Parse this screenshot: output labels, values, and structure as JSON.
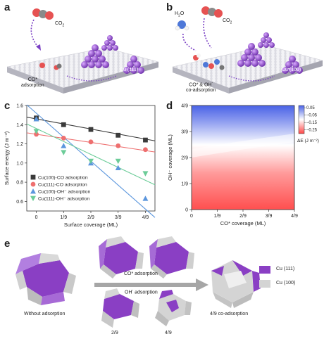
{
  "panels": {
    "a": {
      "letter": "a",
      "molecule_label": "CO",
      "molecule_sub": "2",
      "site_label": "CO*",
      "site_label2": "adsorption",
      "facet_label": "Cu (111)"
    },
    "b": {
      "letter": "b",
      "water_label": "H",
      "water_sub": "2",
      "water_tail": "O",
      "molecule_label": "CO",
      "molecule_sub": "2",
      "site_label": "CO* & OH",
      "site_label_sup": "-",
      "site_label2": "co-adsorption",
      "facet_label": "Cu (100)"
    },
    "c": {
      "letter": "c"
    },
    "d": {
      "letter": "d"
    },
    "e": {
      "letter": "e",
      "left_caption": "Without adsorption",
      "arrow_top": "CO* adsorption",
      "arrow_bottom": "OH",
      "arrow_bottom_sup": "-",
      "arrow_bottom_tail": " adsorption",
      "bottom_left_caption": "2/9",
      "bottom_right_caption": "4/9",
      "right_caption": "4/9 co-adsorption",
      "legend": [
        {
          "label": "Cu (111)",
          "color": "#8a3fc4"
        },
        {
          "label": "Cu (100)",
          "color": "#d4d4d4"
        }
      ]
    }
  },
  "chart_data": [
    {
      "type": "scatter",
      "panel": "c",
      "xlabel": "Surface coverage (ML)",
      "ylabel": "Surface energy (J m⁻²)",
      "x": [
        0,
        1,
        2,
        3,
        4
      ],
      "xticklabels": [
        "0",
        "1/9",
        "2/9",
        "3/9",
        "4/9"
      ],
      "xlim": [
        -0.35,
        4.35
      ],
      "ylim": [
        0.5,
        1.6
      ],
      "yticks": [
        0.6,
        0.8,
        1.0,
        1.2,
        1.4,
        1.6
      ],
      "yticklabels": [
        "0.6",
        "0.8",
        "1.0",
        "1.2",
        "1.4",
        "1.6"
      ],
      "legend_position": "bottom-left",
      "series": [
        {
          "name": "Cu(100)-CO adsorption",
          "marker": "square",
          "color": "#3b3b3b",
          "values": [
            1.47,
            1.4,
            1.35,
            1.29,
            1.24
          ],
          "fit": [
            1.46,
            1.25
          ]
        },
        {
          "name": "Cu(111)-CO adsorption",
          "marker": "circle",
          "color": "#ee6f6f",
          "values": [
            1.3,
            1.26,
            1.22,
            1.18,
            1.14
          ],
          "fit": [
            1.3,
            1.13
          ]
        },
        {
          "name": "Cu(100)-OH⁻ adsorption",
          "marker": "triangle-up",
          "color": "#5b96dd",
          "values": [
            1.46,
            1.18,
            1.0,
            0.95,
            0.63
          ],
          "fit": [
            1.52,
            0.52
          ]
        },
        {
          "name": "Cu(111)-OH⁻ adsorption",
          "marker": "triangle-down",
          "color": "#6ccc98",
          "values": [
            1.33,
            1.11,
            1.02,
            1.02,
            0.89
          ],
          "fit": [
            1.36,
            0.82
          ]
        }
      ]
    },
    {
      "type": "heatmap",
      "panel": "d",
      "xlabel": "CO* coverage (ML)",
      "ylabel": "OH⁻ coverage (ML)",
      "xticklabels": [
        "0",
        "1/9",
        "2/9",
        "3/9",
        "4/9"
      ],
      "yticklabels": [
        "0",
        "1/9",
        "2/9",
        "3/9",
        "4/9"
      ],
      "colorbar": {
        "label": "ΔE (J m⁻²)",
        "ticks": [
          "0.05",
          "–0.05",
          "–0.15",
          "–0.25"
        ],
        "range": [
          -0.3,
          0.08
        ],
        "colors": [
          "#4a63e6",
          "#ffffff",
          "#ff4747"
        ]
      }
    }
  ]
}
